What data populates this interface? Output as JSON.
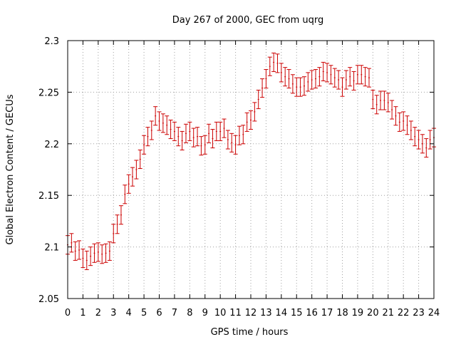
{
  "chart_data": {
    "type": "line",
    "title": "Day 267 of 2000, GEC from uqrg",
    "xlabel": "GPS time / hours",
    "ylabel": "Global Electron Content / GECUs",
    "xlim": [
      0,
      24
    ],
    "ylim": [
      2.05,
      2.3
    ],
    "xticks": [
      0,
      1,
      2,
      3,
      4,
      5,
      6,
      7,
      8,
      9,
      10,
      11,
      12,
      13,
      14,
      15,
      16,
      17,
      18,
      19,
      20,
      21,
      22,
      23,
      24
    ],
    "yticks": [
      2.05,
      2.1,
      2.15,
      2.2,
      2.25,
      2.3
    ],
    "ytick_labels": [
      "2.05",
      "2.1",
      "2.15",
      "2.2",
      "2.25",
      "2.3"
    ],
    "grid": true,
    "legend": "none",
    "color": "#cc0000",
    "error_bar": 0.009,
    "series": [
      {
        "name": "GEC",
        "x": [
          0,
          0.25,
          0.5,
          0.75,
          1,
          1.25,
          1.5,
          1.75,
          2,
          2.25,
          2.5,
          2.75,
          3,
          3.25,
          3.5,
          3.75,
          4,
          4.25,
          4.5,
          4.75,
          5,
          5.25,
          5.5,
          5.75,
          6,
          6.25,
          6.5,
          6.75,
          7,
          7.25,
          7.5,
          7.75,
          8,
          8.25,
          8.5,
          8.75,
          9,
          9.25,
          9.5,
          9.75,
          10,
          10.25,
          10.5,
          10.75,
          11,
          11.25,
          11.5,
          11.75,
          12,
          12.25,
          12.5,
          12.75,
          13,
          13.25,
          13.5,
          13.75,
          14,
          14.25,
          14.5,
          14.75,
          15,
          15.25,
          15.5,
          15.75,
          16,
          16.25,
          16.5,
          16.75,
          17,
          17.25,
          17.5,
          17.75,
          18,
          18.25,
          18.5,
          18.75,
          19,
          19.25,
          19.5,
          19.75,
          20,
          20.25,
          20.5,
          20.75,
          21,
          21.25,
          21.5,
          21.75,
          22,
          22.25,
          22.5,
          22.75,
          23,
          23.25,
          23.5,
          23.75,
          24
        ],
        "y": [
          2.102,
          2.104,
          2.096,
          2.097,
          2.089,
          2.087,
          2.091,
          2.094,
          2.095,
          2.093,
          2.094,
          2.096,
          2.113,
          2.122,
          2.131,
          2.151,
          2.161,
          2.168,
          2.175,
          2.185,
          2.199,
          2.207,
          2.213,
          2.227,
          2.222,
          2.22,
          2.218,
          2.214,
          2.212,
          2.207,
          2.203,
          2.21,
          2.212,
          2.206,
          2.207,
          2.198,
          2.199,
          2.21,
          2.205,
          2.212,
          2.212,
          2.215,
          2.204,
          2.201,
          2.199,
          2.208,
          2.209,
          2.221,
          2.223,
          2.231,
          2.243,
          2.254,
          2.263,
          2.275,
          2.279,
          2.278,
          2.269,
          2.265,
          2.263,
          2.258,
          2.255,
          2.255,
          2.256,
          2.26,
          2.262,
          2.263,
          2.265,
          2.27,
          2.269,
          2.267,
          2.264,
          2.262,
          2.255,
          2.262,
          2.265,
          2.261,
          2.267,
          2.267,
          2.265,
          2.264,
          2.243,
          2.238,
          2.242,
          2.242,
          2.24,
          2.233,
          2.227,
          2.221,
          2.222,
          2.218,
          2.213,
          2.207,
          2.204,
          2.2,
          2.196,
          2.204,
          2.206
        ]
      }
    ]
  }
}
